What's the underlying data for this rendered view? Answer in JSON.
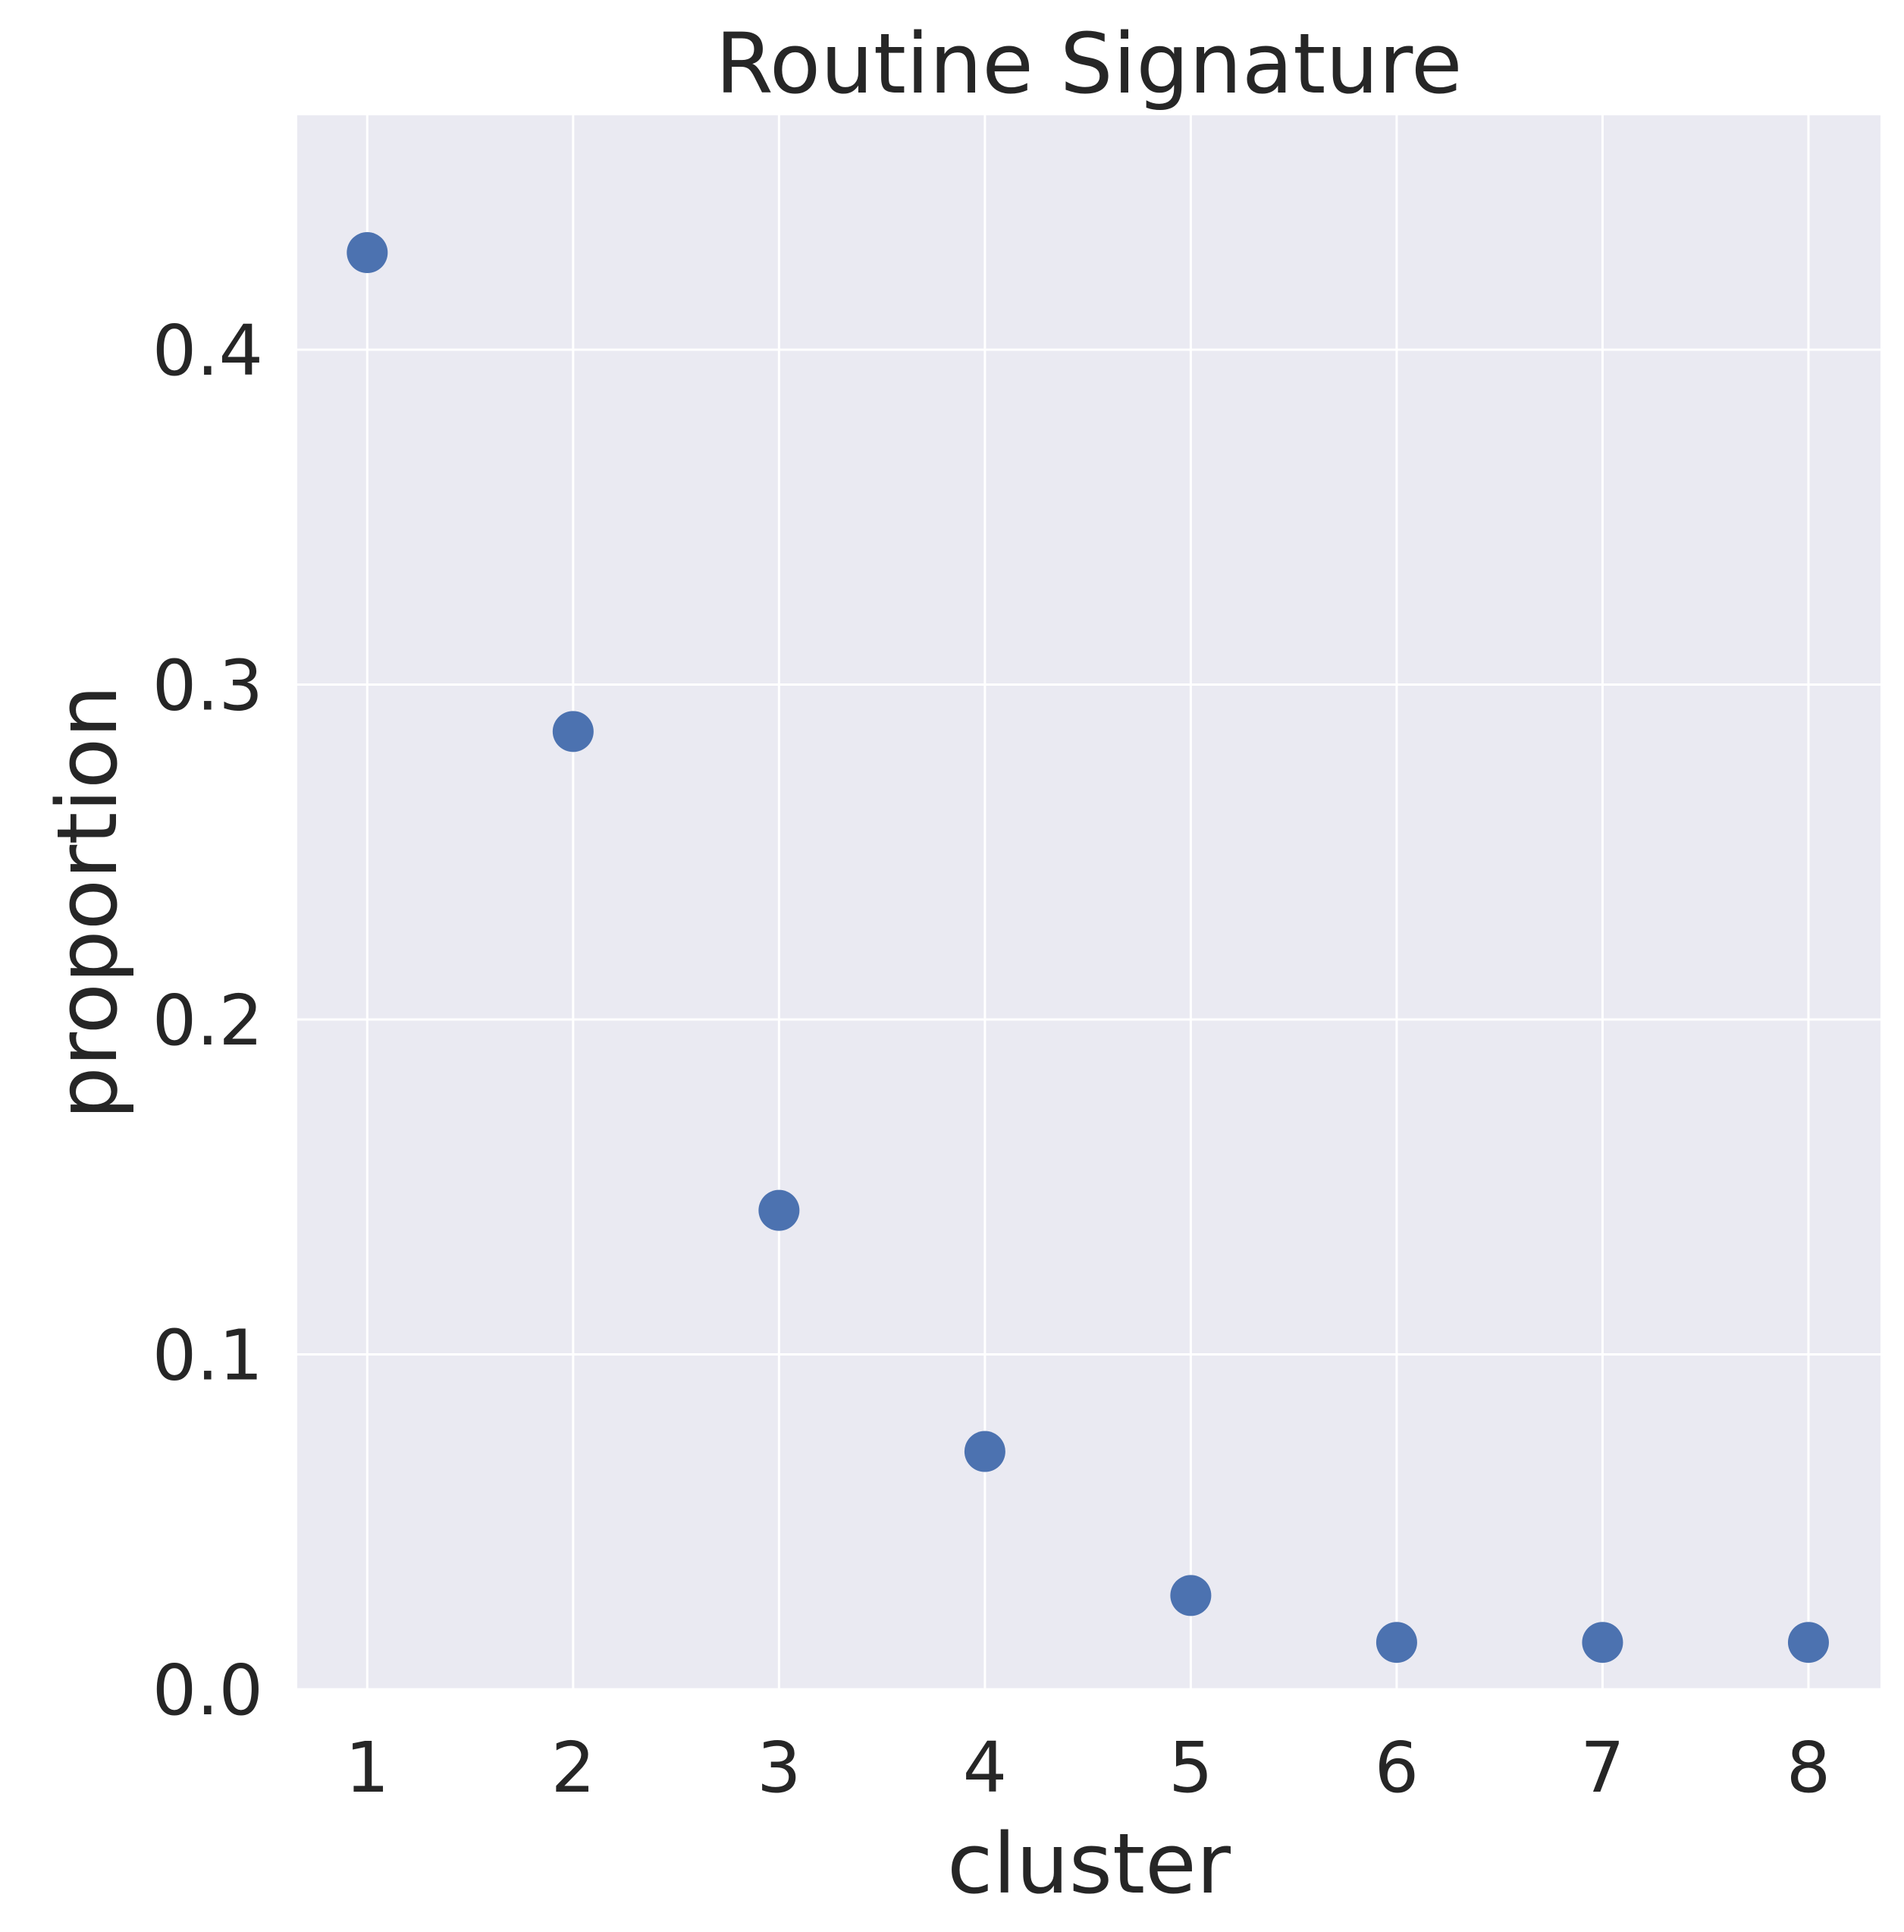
{
  "chart_data": {
    "type": "scatter",
    "title": "Routine Signature",
    "xlabel": "cluster",
    "ylabel": "proportion",
    "x": [
      1,
      2,
      3,
      4,
      5,
      6,
      7,
      8
    ],
    "series": [
      {
        "values": [
          0.429,
          0.286,
          0.143,
          0.071,
          0.028,
          0.014,
          0.014,
          0.014
        ]
      }
    ],
    "xticks": [
      "1",
      "2",
      "3",
      "4",
      "5",
      "6",
      "7",
      "8"
    ],
    "yticks": [
      "0.0",
      "0.1",
      "0.2",
      "0.3",
      "0.4"
    ],
    "xlim": [
      0.66,
      8.35
    ],
    "ylim": [
      0.0,
      0.47
    ],
    "grid": true,
    "legend": "none",
    "colors": {
      "plot_background": "#EAEAF2",
      "grid": "#FFFFFF",
      "marker": "#4C72B0",
      "text": "#262626"
    }
  }
}
